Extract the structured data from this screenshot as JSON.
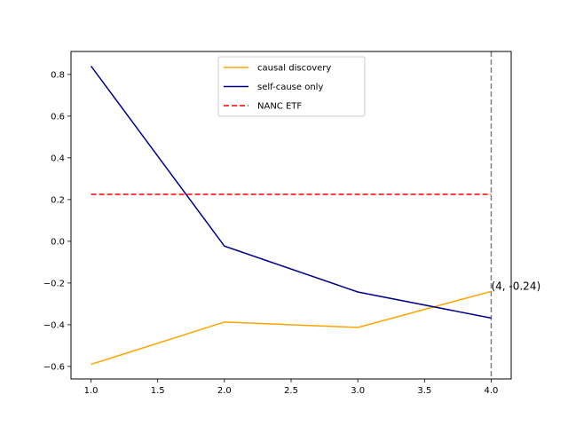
{
  "chart_data": {
    "type": "line",
    "title": "",
    "xlabel": "",
    "ylabel": "",
    "xlim": [
      0.85,
      4.15
    ],
    "ylim": [
      -0.66,
      0.91
    ],
    "xticks": [
      1.0,
      1.5,
      2.0,
      2.5,
      3.0,
      3.5,
      4.0
    ],
    "xtick_labels": [
      "1.0",
      "1.5",
      "2.0",
      "2.5",
      "3.0",
      "3.5",
      "4.0"
    ],
    "yticks": [
      -0.6,
      -0.4,
      -0.2,
      0.0,
      0.2,
      0.4,
      0.6,
      0.8
    ],
    "ytick_labels": [
      "−0.6",
      "−0.4",
      "−0.2",
      "0.0",
      "0.2",
      "0.4",
      "0.6",
      "0.8"
    ],
    "grid": false,
    "legend_position": "upper center",
    "series": [
      {
        "name": "causal discovery",
        "color": "#FFA500",
        "style": "solid",
        "x": [
          1,
          2,
          3,
          4
        ],
        "y": [
          -0.59,
          -0.387,
          -0.413,
          -0.24
        ]
      },
      {
        "name": "self-cause only",
        "color": "#00008B",
        "style": "solid",
        "x": [
          1,
          2,
          3,
          4
        ],
        "y": [
          0.84,
          -0.023,
          -0.243,
          -0.368
        ]
      },
      {
        "name": "NANC ETF",
        "color": "#FF0000",
        "style": "dashed",
        "x": [
          1,
          4
        ],
        "y": [
          0.225,
          0.225
        ]
      }
    ],
    "vline": {
      "x": 4,
      "color": "#808080",
      "style": "dashed"
    },
    "annotation": {
      "text": "(4, -0.24)",
      "x": 4,
      "y": -0.24
    }
  }
}
